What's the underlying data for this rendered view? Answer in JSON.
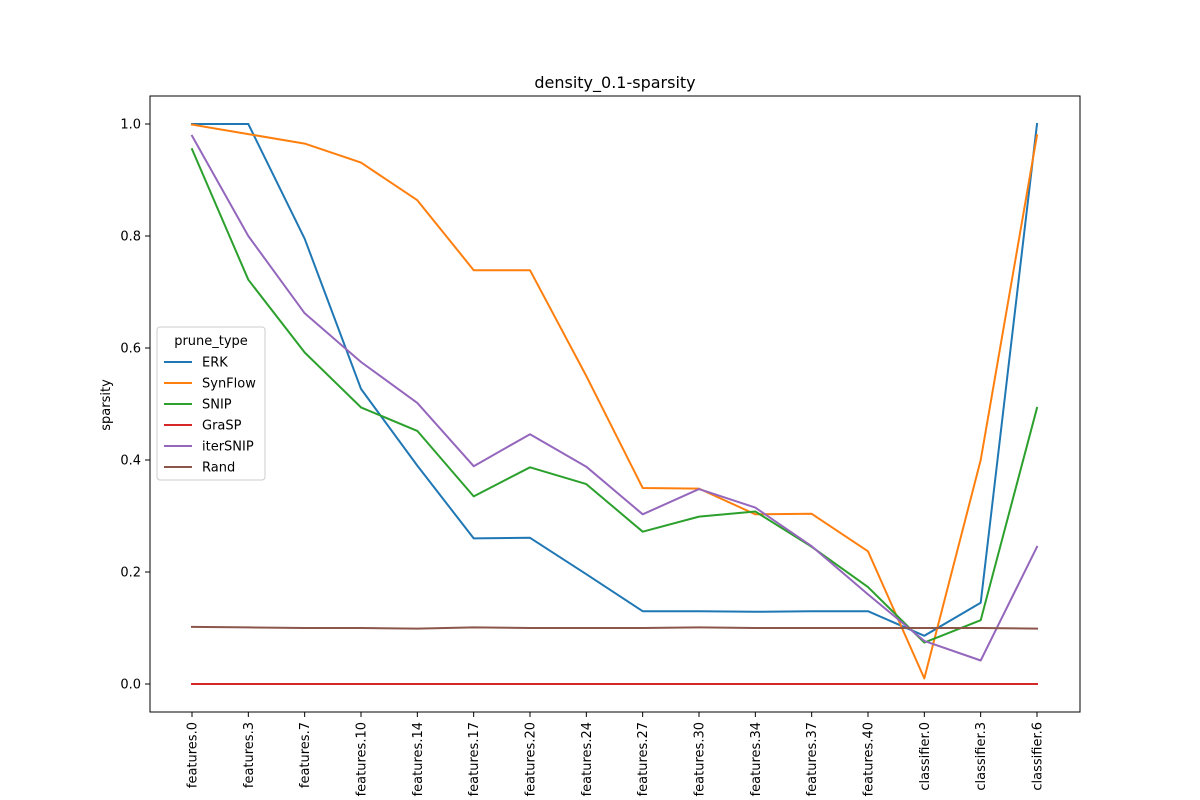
{
  "chart_data": {
    "type": "line",
    "title": "density_0.1-sparsity",
    "xlabel": "",
    "ylabel": "sparsity",
    "ylim": [
      -0.05,
      1.05
    ],
    "yticks": [
      "0.0",
      "0.2",
      "0.4",
      "0.6",
      "0.8",
      "1.0"
    ],
    "grid": false,
    "legend": {
      "title": "prune_type",
      "placement": "center-left"
    },
    "categories": [
      "features.0",
      "features.3",
      "features.7",
      "features.10",
      "features.14",
      "features.17",
      "features.20",
      "features.24",
      "features.27",
      "features.30",
      "features.34",
      "features.37",
      "features.40",
      "classifier.0",
      "classifier.3",
      "classifier.6"
    ],
    "series": [
      {
        "name": "ERK",
        "color": "#1f77b4",
        "values": [
          1.0,
          1.0,
          0.795,
          0.527,
          0.39,
          0.26,
          0.261,
          0.196,
          0.13,
          0.13,
          0.129,
          0.13,
          0.13,
          0.086,
          0.145,
          1.0
        ]
      },
      {
        "name": "SynFlow",
        "color": "#ff7f0e",
        "values": [
          0.999,
          0.982,
          0.965,
          0.931,
          0.864,
          0.739,
          0.739,
          0.55,
          0.35,
          0.349,
          0.303,
          0.304,
          0.237,
          0.01,
          0.4,
          0.98
        ]
      },
      {
        "name": "SNIP",
        "color": "#2ca02c",
        "values": [
          0.955,
          0.722,
          0.592,
          0.494,
          0.452,
          0.335,
          0.387,
          0.357,
          0.272,
          0.299,
          0.308,
          0.245,
          0.173,
          0.074,
          0.114,
          0.493
        ]
      },
      {
        "name": "GraSP",
        "color": "#d62728",
        "values": [
          0.0,
          0.0,
          0.0,
          0.0,
          0.0,
          0.0,
          0.0,
          0.0,
          0.0,
          0.0,
          0.0,
          0.0,
          0.0,
          0.0,
          0.0,
          0.0
        ]
      },
      {
        "name": "iterSNIP",
        "color": "#9467bd",
        "values": [
          0.979,
          0.8,
          0.662,
          0.575,
          0.502,
          0.389,
          0.446,
          0.388,
          0.303,
          0.348,
          0.315,
          0.246,
          0.16,
          0.077,
          0.042,
          0.245
        ]
      },
      {
        "name": "Rand",
        "color": "#8c564b",
        "values": [
          0.102,
          0.101,
          0.1,
          0.1,
          0.099,
          0.101,
          0.1,
          0.1,
          0.1,
          0.101,
          0.1,
          0.1,
          0.1,
          0.1,
          0.1,
          0.099
        ]
      }
    ]
  }
}
